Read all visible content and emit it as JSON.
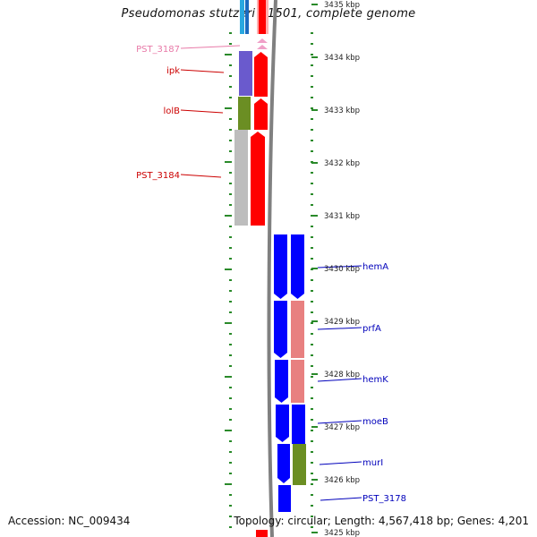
{
  "title": "Pseudomonas stutzeri A1501, complete genome",
  "footer": {
    "accession": "Accession: NC_009434",
    "summary": "Topology: circular; Length: 4,567,418 bp; Genes: 4,201"
  },
  "scale": {
    "ticks": [
      {
        "label": "3435 kbp",
        "kbp": 3435
      },
      {
        "label": "3434 kbp",
        "kbp": 3434
      },
      {
        "label": "3433 kbp",
        "kbp": 3433
      },
      {
        "label": "3432 kbp",
        "kbp": 3432
      },
      {
        "label": "3431 kbp",
        "kbp": 3431
      },
      {
        "label": "3430 kbp",
        "kbp": 3430
      },
      {
        "label": "3429 kbp",
        "kbp": 3429
      },
      {
        "label": "3428 kbp",
        "kbp": 3428
      },
      {
        "label": "3427 kbp",
        "kbp": 3427
      },
      {
        "label": "3426 kbp",
        "kbp": 3426
      },
      {
        "label": "3425 kbp",
        "kbp": 3425
      }
    ]
  },
  "colors": {
    "reverse_label": "#cc0000",
    "forward_label": "#0000bb",
    "faded_label": "#e87aa8",
    "red": "#ff0000",
    "blue": "#0000ff",
    "salmon": "#e88080",
    "purple": "#6a5acd",
    "olive": "#6b8e23",
    "grey": "#bdbdbd",
    "light_blue": "#29a8e0",
    "pink": "#f0a0c8",
    "tick_green": "#2a8a2a",
    "backbone": "#808080"
  },
  "genes_reverse": [
    {
      "label": "PST_3187",
      "faded": true,
      "cog": "pink"
    },
    {
      "label": "ipk",
      "faded": false,
      "cog": "purple"
    },
    {
      "label": "lolB",
      "faded": false,
      "cog": "olive"
    },
    {
      "label": "PST_3184",
      "faded": false,
      "cog": "grey"
    }
  ],
  "genes_forward": [
    {
      "label": "hemA",
      "cog": "blue"
    },
    {
      "label": "prfA",
      "cog": "salmon"
    },
    {
      "label": "hemK",
      "cog": "salmon"
    },
    {
      "label": "moeB",
      "cog": "blue"
    },
    {
      "label": "murI",
      "cog": "olive"
    },
    {
      "label": "PST_3178",
      "cog": "blue"
    }
  ]
}
